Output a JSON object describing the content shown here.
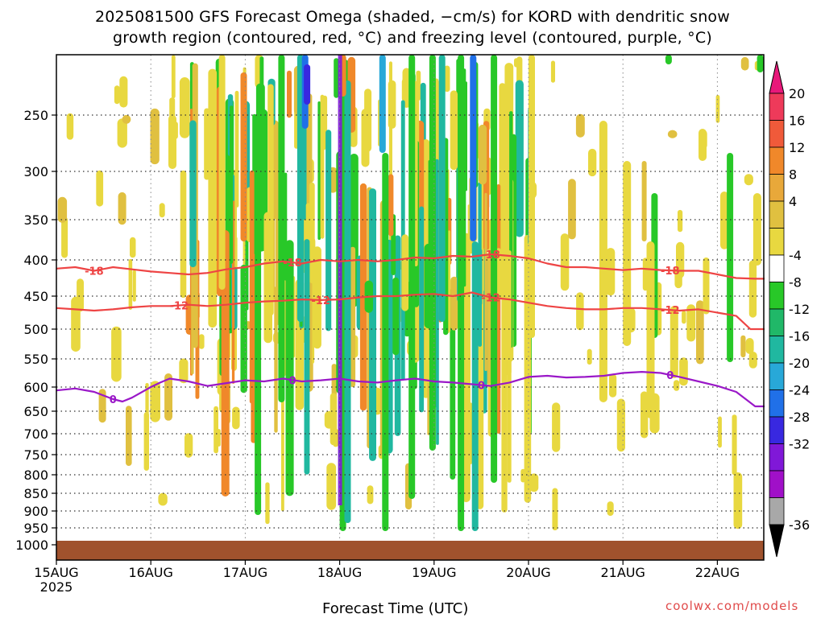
{
  "chart_data": {
    "type": "heatmap",
    "title_line1": "2025081500 GFS Forecast Omega (shaded, −cm/s) for KORD with dendritic snow",
    "title_line2": "growth region (contoured, red, °C) and freezing level (contoured, purple, °C)",
    "xlabel": "Forecast Time (UTC)",
    "credit": "coolwx.com/models",
    "x_ticks": [
      "15AUG",
      "16AUG",
      "17AUG",
      "18AUG",
      "19AUG",
      "20AUG",
      "21AUG",
      "22AUG"
    ],
    "x_year": "2025",
    "y_ticks": [
      250,
      300,
      350,
      400,
      450,
      500,
      550,
      600,
      650,
      700,
      750,
      800,
      850,
      900,
      950,
      1000
    ],
    "ylim": [
      1000,
      200
    ],
    "xlim_days": [
      0,
      7.5
    ],
    "colorbar": {
      "labels": [
        20,
        16,
        12,
        8,
        4,
        -4,
        -8,
        -12,
        -16,
        -20,
        -24,
        -28,
        -32,
        -36
      ],
      "colors": [
        "#ee3a5a",
        "#f05a3a",
        "#f0882a",
        "#e8a83a",
        "#e0c040",
        "#e8d840",
        "#ffffff",
        "#28c828",
        "#20b868",
        "#20b8a0",
        "#28a8d8",
        "#2070e8",
        "#3828e0",
        "#8018d8",
        "#a010c8",
        "#a8a8a8"
      ],
      "top_color": "#e8187a",
      "bottom_color": "#000000"
    },
    "contours": [
      {
        "label": "-18",
        "color": "#ee4444",
        "points": [
          [
            0,
            412
          ],
          [
            0.2,
            410
          ],
          [
            0.4,
            415
          ],
          [
            0.6,
            410
          ],
          [
            0.8,
            413
          ],
          [
            1.0,
            416
          ],
          [
            1.2,
            418
          ],
          [
            1.4,
            420
          ],
          [
            1.6,
            418
          ],
          [
            1.8,
            413
          ],
          [
            2.0,
            410
          ],
          [
            2.2,
            405
          ],
          [
            2.4,
            402
          ],
          [
            2.6,
            405
          ],
          [
            2.8,
            400
          ],
          [
            3.0,
            402
          ],
          [
            3.2,
            400
          ],
          [
            3.4,
            402
          ],
          [
            3.6,
            400
          ],
          [
            3.8,
            397
          ],
          [
            4.0,
            398
          ],
          [
            4.2,
            395
          ],
          [
            4.4,
            396
          ],
          [
            4.6,
            393
          ],
          [
            4.8,
            395
          ],
          [
            5.0,
            398
          ],
          [
            5.2,
            405
          ],
          [
            5.4,
            410
          ],
          [
            5.6,
            410
          ],
          [
            5.8,
            412
          ],
          [
            6.0,
            414
          ],
          [
            6.2,
            412
          ],
          [
            6.4,
            414
          ],
          [
            6.6,
            415
          ],
          [
            6.8,
            415
          ],
          [
            7.0,
            420
          ],
          [
            7.2,
            425
          ],
          [
            7.4,
            426
          ],
          [
            7.5,
            426
          ]
        ],
        "labels_at": [
          0.4,
          2.5,
          4.6,
          6.5
        ]
      },
      {
        "label": "-12",
        "color": "#ee4444",
        "points": [
          [
            0,
            468
          ],
          [
            0.2,
            470
          ],
          [
            0.4,
            472
          ],
          [
            0.6,
            470
          ],
          [
            0.8,
            467
          ],
          [
            1.0,
            465
          ],
          [
            1.2,
            465
          ],
          [
            1.4,
            463
          ],
          [
            1.6,
            465
          ],
          [
            1.8,
            463
          ],
          [
            2.0,
            460
          ],
          [
            2.2,
            458
          ],
          [
            2.4,
            457
          ],
          [
            2.6,
            455
          ],
          [
            2.8,
            456
          ],
          [
            3.0,
            455
          ],
          [
            3.2,
            452
          ],
          [
            3.4,
            450
          ],
          [
            3.6,
            450
          ],
          [
            3.8,
            448
          ],
          [
            4.0,
            447
          ],
          [
            4.2,
            450
          ],
          [
            4.4,
            445
          ],
          [
            4.6,
            452
          ],
          [
            4.8,
            455
          ],
          [
            5.0,
            460
          ],
          [
            5.2,
            465
          ],
          [
            5.4,
            468
          ],
          [
            5.6,
            470
          ],
          [
            5.8,
            470
          ],
          [
            6.0,
            468
          ],
          [
            6.2,
            468
          ],
          [
            6.4,
            470
          ],
          [
            6.6,
            472
          ],
          [
            6.8,
            470
          ],
          [
            7.0,
            475
          ],
          [
            7.2,
            480
          ],
          [
            7.35,
            500
          ],
          [
            7.5,
            500
          ]
        ],
        "labels_at": [
          1.3,
          2.8,
          4.6,
          6.5
        ]
      },
      {
        "label": "0",
        "color": "#9a18c8",
        "points": [
          [
            0,
            607
          ],
          [
            0.2,
            603
          ],
          [
            0.4,
            610
          ],
          [
            0.6,
            625
          ],
          [
            0.7,
            630
          ],
          [
            0.8,
            622
          ],
          [
            1.0,
            600
          ],
          [
            1.1,
            592
          ],
          [
            1.2,
            585
          ],
          [
            1.4,
            590
          ],
          [
            1.6,
            598
          ],
          [
            1.8,
            593
          ],
          [
            2.0,
            588
          ],
          [
            2.2,
            590
          ],
          [
            2.4,
            585
          ],
          [
            2.6,
            590
          ],
          [
            2.8,
            588
          ],
          [
            3.0,
            585
          ],
          [
            3.2,
            590
          ],
          [
            3.4,
            592
          ],
          [
            3.6,
            588
          ],
          [
            3.8,
            585
          ],
          [
            4.0,
            590
          ],
          [
            4.2,
            592
          ],
          [
            4.4,
            595
          ],
          [
            4.6,
            598
          ],
          [
            4.8,
            592
          ],
          [
            5.0,
            582
          ],
          [
            5.2,
            580
          ],
          [
            5.4,
            583
          ],
          [
            5.6,
            582
          ],
          [
            5.8,
            580
          ],
          [
            6.0,
            575
          ],
          [
            6.2,
            573
          ],
          [
            6.4,
            575
          ],
          [
            6.6,
            582
          ],
          [
            6.8,
            590
          ],
          [
            7.0,
            598
          ],
          [
            7.2,
            610
          ],
          [
            7.3,
            625
          ],
          [
            7.4,
            640
          ],
          [
            7.5,
            640
          ]
        ],
        "labels_at": [
          0.6,
          2.5,
          4.5,
          6.5
        ]
      }
    ]
  }
}
